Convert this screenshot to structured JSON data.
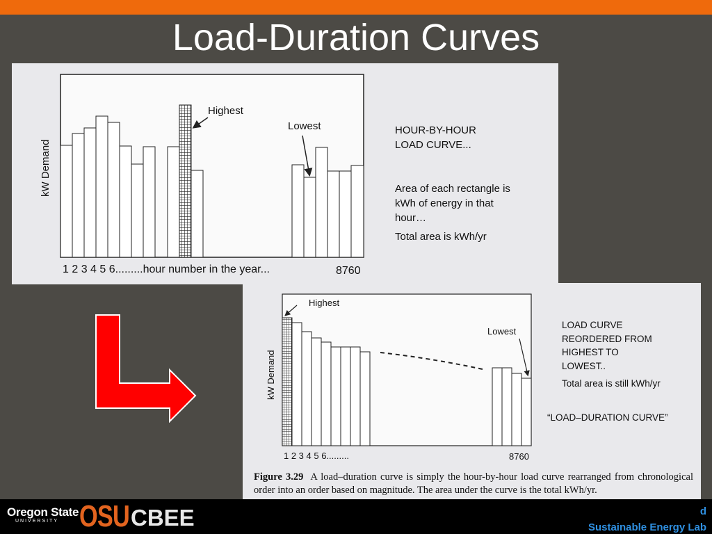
{
  "slide": {
    "title": "Load-Duration Curves"
  },
  "figure_top": {
    "ylabel": "kW Demand",
    "xlabel": "1 2 3 4 5 6.........hour number in the year...",
    "x_end": "8760",
    "highest_label": "Highest",
    "lowest_label": "Lowest",
    "desc_lines": [
      "HOUR-BY-HOUR",
      "LOAD CURVE..."
    ],
    "area_lines": [
      "Area of each rectangle is",
      "kWh of energy in that",
      "hour…"
    ],
    "total": "Total area is kWh/yr"
  },
  "figure_bottom": {
    "ylabel": "kW Demand",
    "xlabel": "1 2 3 4 5 6.........",
    "x_end": "8760",
    "highest_label": "Highest",
    "lowest_label": "Lowest",
    "desc_lines": [
      "LOAD CURVE",
      "REORDERED FROM",
      "HIGHEST TO",
      "LOWEST.."
    ],
    "total": "Total area is still kWh/yr",
    "curve_name": "“LOAD–DURATION CURVE”",
    "caption_label": "Figure 3.29",
    "caption_text": "A load–duration curve is simply the hour-by-hour load curve rearranged from chronological order into an order based on magnitude. The area under the curve is the total kWh/yr."
  },
  "footer": {
    "logo_name": "Oregon State",
    "logo_sub": "UNIVERSITY",
    "logo_osu": "OSU",
    "logo_cbee": "CBEE",
    "lab_line1": "d",
    "lab_line2": "Sustainable Energy Lab"
  },
  "colors": {
    "top_bar": "#ef6a0c",
    "background": "#4c4a45",
    "arrow": "#ff0000",
    "footer_text": "#2f8fe0"
  }
}
